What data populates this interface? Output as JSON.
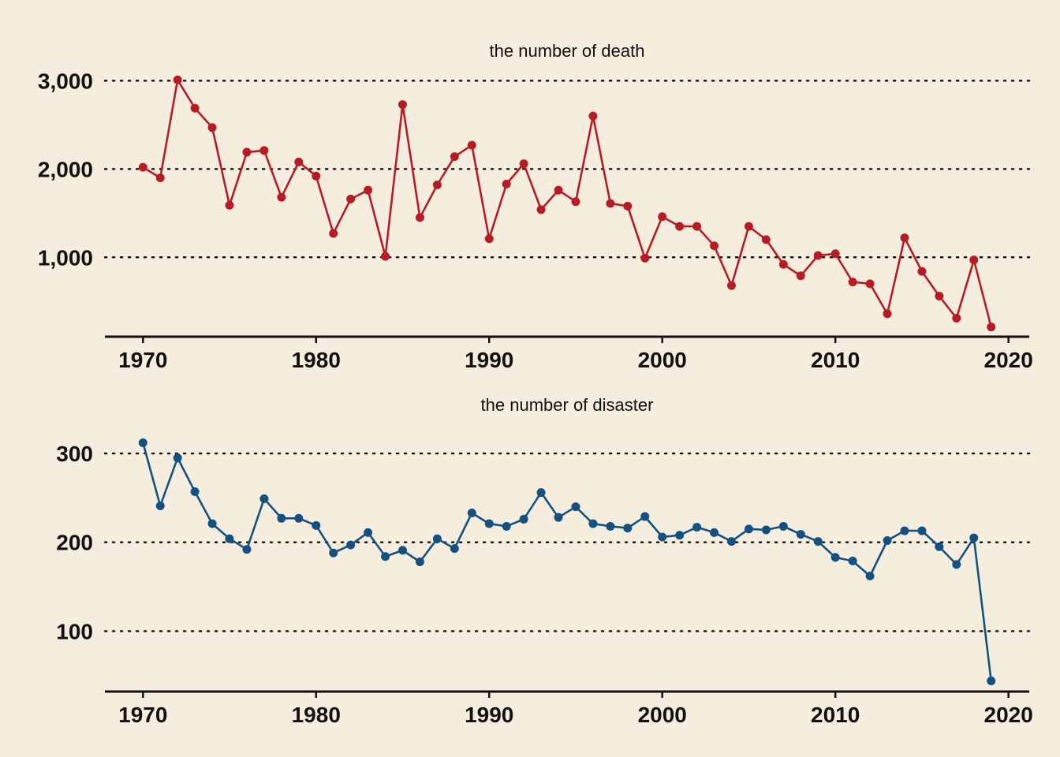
{
  "chart_data": [
    {
      "type": "line",
      "title": "the number of death",
      "xlabel": "",
      "ylabel": "",
      "color": "#b71c24",
      "xlim": [
        1967.8,
        2021.2
      ],
      "ylim": [
        100,
        3200
      ],
      "yticks": [
        1000,
        2000,
        3000
      ],
      "ytick_labels": [
        "1,000",
        "2,000",
        "3,000"
      ],
      "xticks": [
        1970,
        1980,
        1990,
        2000,
        2010,
        2020
      ],
      "xtick_labels": [
        "1970",
        "1980",
        "1990",
        "2000",
        "2010",
        "2020"
      ],
      "grid": "horizontal dotted",
      "series": [
        {
          "x": [
            1970,
            1971,
            1972,
            1973,
            1974,
            1975,
            1976,
            1977,
            1978,
            1979,
            1980,
            1981,
            1982,
            1983,
            1984,
            1985,
            1986,
            1987,
            1988,
            1989,
            1990,
            1991,
            1992,
            1993,
            1994,
            1995,
            1996,
            1997,
            1998,
            1999,
            2000,
            2001,
            2002,
            2003,
            2004,
            2005,
            2006,
            2007,
            2008,
            2009,
            2010,
            2011,
            2012,
            2013,
            2014,
            2015,
            2016,
            2017,
            2018,
            2019
          ],
          "values": [
            2020,
            1900,
            3010,
            2690,
            2470,
            1590,
            2190,
            2210,
            1680,
            2080,
            1920,
            1270,
            1660,
            1760,
            1010,
            2730,
            1450,
            1820,
            2140,
            2270,
            1210,
            1830,
            2060,
            1540,
            1760,
            1630,
            2600,
            1610,
            1580,
            990,
            1460,
            1350,
            1350,
            1130,
            680,
            1350,
            1200,
            920,
            790,
            1020,
            1040,
            720,
            700,
            360,
            1220,
            840,
            560,
            310,
            970,
            210
          ]
        }
      ]
    },
    {
      "type": "line",
      "title": "the number of disaster",
      "xlabel": "",
      "ylabel": "",
      "color": "#145180",
      "xlim": [
        1967.8,
        2021.2
      ],
      "ylim": [
        32,
        340
      ],
      "yticks": [
        100,
        200,
        300
      ],
      "ytick_labels": [
        "100",
        "200",
        "300"
      ],
      "xticks": [
        1970,
        1980,
        1990,
        2000,
        2010,
        2020
      ],
      "xtick_labels": [
        "1970",
        "1980",
        "1990",
        "2000",
        "2010",
        "2020"
      ],
      "grid": "horizontal dotted",
      "series": [
        {
          "x": [
            1970,
            1971,
            1972,
            1973,
            1974,
            1975,
            1976,
            1977,
            1978,
            1979,
            1980,
            1981,
            1982,
            1983,
            1984,
            1985,
            1986,
            1987,
            1988,
            1989,
            1990,
            1991,
            1992,
            1993,
            1994,
            1995,
            1996,
            1997,
            1998,
            1999,
            2000,
            2001,
            2002,
            2003,
            2004,
            2005,
            2006,
            2007,
            2008,
            2009,
            2010,
            2011,
            2012,
            2013,
            2014,
            2015,
            2016,
            2017,
            2018,
            2019
          ],
          "values": [
            312,
            241,
            295,
            257,
            221,
            204,
            192,
            249,
            227,
            227,
            219,
            188,
            197,
            211,
            184,
            191,
            178,
            204,
            193,
            233,
            221,
            218,
            226,
            256,
            228,
            240,
            221,
            218,
            216,
            229,
            206,
            208,
            217,
            211,
            201,
            215,
            214,
            218,
            209,
            201,
            183,
            179,
            162,
            202,
            213,
            213,
            195,
            175,
            205,
            44
          ]
        }
      ]
    }
  ]
}
